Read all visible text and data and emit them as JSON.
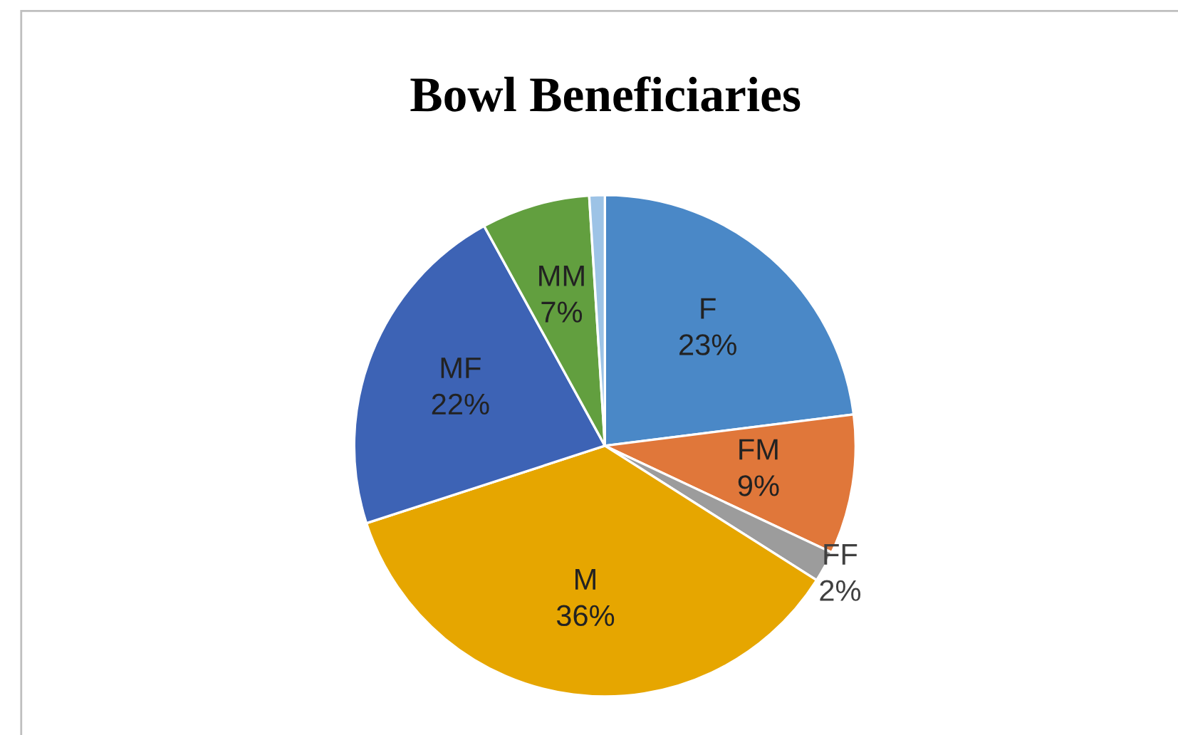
{
  "chart_data": {
    "type": "pie",
    "title": "Bowl Beneficiaries",
    "categories": [
      "F",
      "FM",
      "FF",
      "M",
      "MF",
      "MM",
      null
    ],
    "values": [
      23,
      9,
      2,
      36,
      22,
      7,
      1
    ],
    "value_labels": [
      "23%",
      "9%",
      "2%",
      "36%",
      "22%",
      "7%",
      null
    ],
    "colors": [
      "#4a88c7",
      "#e0773a",
      "#9c9c9c",
      "#e6a600",
      "#3d63b5",
      "#629f3f",
      "#9dc3e6"
    ],
    "legend": false
  }
}
